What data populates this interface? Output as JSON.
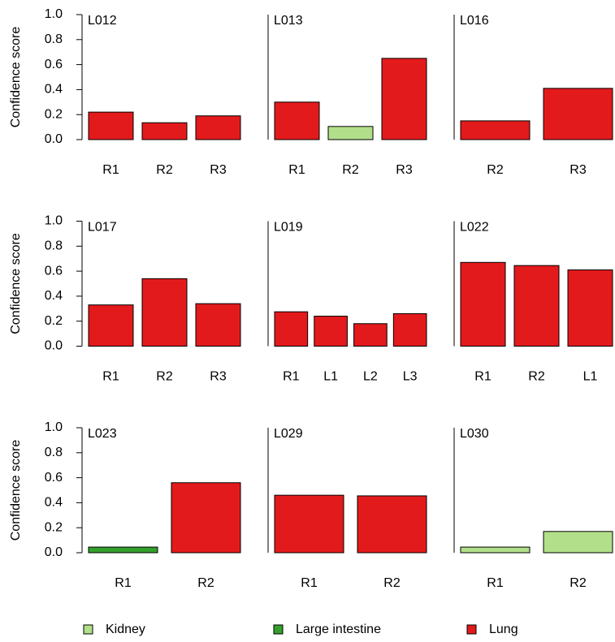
{
  "chart_data": [
    {
      "type": "bar",
      "title": "L012",
      "ylabel": "Confidence score",
      "categories": [
        "R1",
        "R2",
        "R3"
      ],
      "values": [
        0.22,
        0.135,
        0.19
      ],
      "colors": [
        "#e31a1c",
        "#e31a1c",
        "#e31a1c"
      ],
      "ylim": [
        0,
        1
      ],
      "yticks": [
        {
          "value": 0,
          "label": "0.0"
        },
        0.2,
        0.4,
        0.6,
        0.8,
        {
          "value": 1,
          "label": "1.0"
        }
      ]
    },
    {
      "type": "bar",
      "title": "L013",
      "categories": [
        "R1",
        "R2",
        "R3"
      ],
      "values": [
        0.3,
        0.105,
        0.65
      ],
      "colors": [
        "#e31a1c",
        "#b2df8a",
        "#e31a1c"
      ],
      "ylim": [
        0,
        1
      ]
    },
    {
      "type": "bar",
      "title": "L016",
      "categories": [
        "R2",
        "R3"
      ],
      "values": [
        0.15,
        0.41
      ],
      "colors": [
        "#e31a1c",
        "#e31a1c"
      ],
      "ylim": [
        0,
        1
      ]
    },
    {
      "type": "bar",
      "title": "L017",
      "ylabel": "Confidence score",
      "categories": [
        "R1",
        "R2",
        "R3"
      ],
      "values": [
        0.33,
        0.54,
        0.34
      ],
      "colors": [
        "#e31a1c",
        "#e31a1c",
        "#e31a1c"
      ],
      "ylim": [
        0,
        1
      ],
      "yticks": [
        {
          "value": 0,
          "label": "0.0"
        },
        0.2,
        0.4,
        0.6,
        0.8,
        {
          "value": 1,
          "label": "1.0"
        }
      ]
    },
    {
      "type": "bar",
      "title": "L019",
      "categories": [
        "R1",
        "L1",
        "L2",
        "L3"
      ],
      "values": [
        0.275,
        0.24,
        0.18,
        0.26
      ],
      "colors": [
        "#e31a1c",
        "#e31a1c",
        "#e31a1c",
        "#e31a1c"
      ],
      "ylim": [
        0,
        1
      ]
    },
    {
      "type": "bar",
      "title": "L022",
      "categories": [
        "R1",
        "R2",
        "L1"
      ],
      "values": [
        0.67,
        0.645,
        0.61
      ],
      "colors": [
        "#e31a1c",
        "#e31a1c",
        "#e31a1c"
      ],
      "ylim": [
        0,
        1
      ]
    },
    {
      "type": "bar",
      "title": "L023",
      "ylabel": "Confidence score",
      "categories": [
        "R1",
        "R2"
      ],
      "values": [
        0.045,
        0.56
      ],
      "colors": [
        "#33a02c",
        "#e31a1c"
      ],
      "ylim": [
        0,
        1
      ],
      "yticks": [
        {
          "value": 0,
          "label": "0.0"
        },
        0.2,
        0.4,
        0.6,
        0.8,
        {
          "value": 1,
          "label": "1.0"
        }
      ]
    },
    {
      "type": "bar",
      "title": "L029",
      "categories": [
        "R1",
        "R2"
      ],
      "values": [
        0.46,
        0.455
      ],
      "colors": [
        "#e31a1c",
        "#e31a1c"
      ],
      "ylim": [
        0,
        1
      ]
    },
    {
      "type": "bar",
      "title": "L030",
      "categories": [
        "R1",
        "R2"
      ],
      "values": [
        0.045,
        0.17
      ],
      "colors": [
        "#b2df8a",
        "#b2df8a"
      ],
      "ylim": [
        0,
        1
      ]
    }
  ],
  "legend": [
    {
      "name": "Kidney",
      "color": "#b2df8a"
    },
    {
      "name": "Large intestine",
      "color": "#33a02c"
    },
    {
      "name": "Lung",
      "color": "#e31a1c"
    }
  ]
}
